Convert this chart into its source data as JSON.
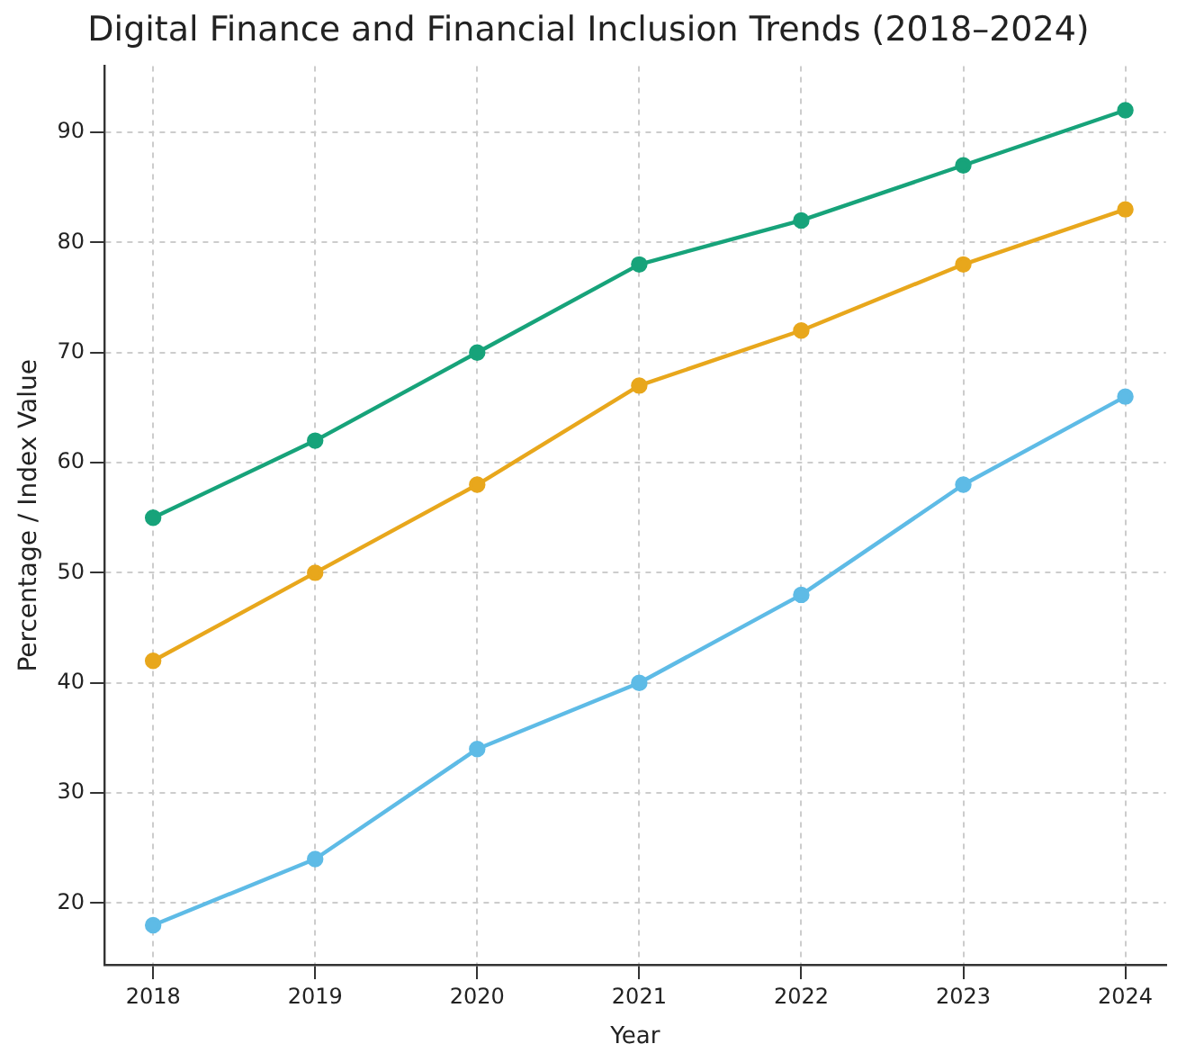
{
  "chart_data": {
    "type": "line",
    "title": "Digital Finance and Financial Inclusion Trends (2018–2024)",
    "xlabel": "Year",
    "ylabel": "Percentage / Index Value",
    "x": [
      2018,
      2019,
      2020,
      2021,
      2022,
      2023,
      2024
    ],
    "series": [
      {
        "color": "#17a37a",
        "values": [
          55,
          62,
          70,
          78,
          82,
          87,
          92
        ]
      },
      {
        "color": "#e8a71c",
        "values": [
          42,
          50,
          58,
          67,
          72,
          78,
          83
        ]
      },
      {
        "color": "#5ebbe6",
        "values": [
          18,
          24,
          34,
          40,
          48,
          58,
          66
        ]
      }
    ],
    "xlim": [
      2017.7,
      2024.25
    ],
    "xticks": [
      2018,
      2019,
      2020,
      2021,
      2022,
      2023,
      2024
    ],
    "ylim": [
      14.4,
      96
    ],
    "yticks": [
      20,
      30,
      40,
      50,
      60,
      70,
      80,
      90
    ],
    "grid": true,
    "legend": false,
    "marker": "circle",
    "line_style": "solid"
  }
}
